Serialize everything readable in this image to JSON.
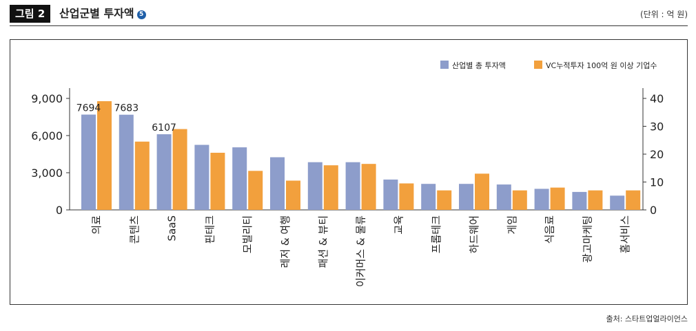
{
  "header": {
    "figure_label": "그림 2",
    "title": "산업군별 투자액",
    "title_badge": "5",
    "unit": "(단위 : 억 원)"
  },
  "footer": {
    "source": "출처: 스타트업얼라이언스"
  },
  "colors": {
    "investment": "#8d9dcb",
    "vc_count": "#f2a03d",
    "axis": "#333333"
  },
  "chart_data": {
    "type": "bar",
    "categories": [
      "의료",
      "콘텐츠",
      "SaaS",
      "핀테크",
      "모빌리티",
      "레저 & 여행",
      "패션 & 뷰티",
      "이커머스 & 물류",
      "교육",
      "프롭테크",
      "하드웨어",
      "게임",
      "식음료",
      "광고마케팅",
      "홈서비스"
    ],
    "series": [
      {
        "name": "산업별 총 투자액",
        "axis": "left",
        "values": [
          7694,
          7683,
          6107,
          5250,
          5050,
          4250,
          3850,
          3850,
          2450,
          2100,
          2100,
          2050,
          1700,
          1450,
          1150
        ],
        "data_labels": [
          "7694",
          "7683",
          "6107"
        ]
      },
      {
        "name": "VC누적투자 100억 원 이상 기업수",
        "axis": "right",
        "values": [
          39,
          24.5,
          29,
          20.5,
          14,
          10.5,
          16,
          16.5,
          9.5,
          7,
          13,
          7,
          8,
          7,
          7
        ]
      }
    ],
    "y_left": {
      "min": 0,
      "max": 9000,
      "ticks": [
        "0",
        "3,000",
        "6,000",
        "9,000"
      ]
    },
    "y_right": {
      "min": 0,
      "max": 40,
      "ticks": [
        "0",
        "10",
        "20",
        "30",
        "40"
      ]
    },
    "legend_position": "top-right",
    "grid": false
  }
}
